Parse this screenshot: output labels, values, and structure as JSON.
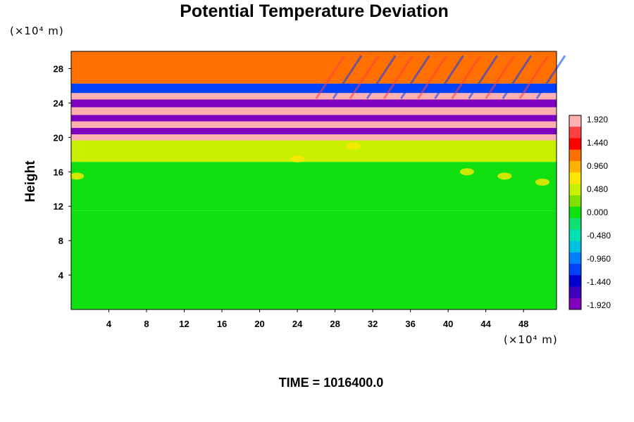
{
  "chart_data": {
    "type": "heatmap",
    "title": "Potential Temperature Deviation",
    "ylabel": "Height",
    "xlabel": "",
    "x_unit": "(×10⁴ m)",
    "y_unit": "(×10⁴ m)",
    "xlim": [
      0,
      51.5
    ],
    "ylim": [
      0,
      30
    ],
    "x_ticks": [
      4,
      8,
      12,
      16,
      20,
      24,
      28,
      32,
      36,
      40,
      44,
      48
    ],
    "y_ticks": [
      4,
      8,
      12,
      16,
      20,
      24,
      28
    ],
    "colorbar": {
      "range": [
        -1.92,
        1.92
      ],
      "labels": [
        "1.920",
        "1.440",
        "0.960",
        "0.480",
        "0.000",
        "-0.480",
        "-0.960",
        "-1.440",
        "-1.920"
      ],
      "colors": [
        "#ffb0b0",
        "#ff4040",
        "#ff0000",
        "#ff7000",
        "#ffb000",
        "#ffe800",
        "#c8f000",
        "#80e000",
        "#10e010",
        "#10e070",
        "#00e0b0",
        "#00c0e0",
        "#0080ff",
        "#0040ff",
        "#0000d0",
        "#4000c0",
        "#8000c0"
      ]
    },
    "bands": [
      {
        "y": 27.0,
        "value": 1.2
      },
      {
        "y": 25.5,
        "value": -1.2
      },
      {
        "y": 24.8,
        "value": 1.92
      },
      {
        "y": 24.0,
        "value": -1.92
      },
      {
        "y": 23.0,
        "value": 1.92
      },
      {
        "y": 22.2,
        "value": -1.92
      },
      {
        "y": 21.5,
        "value": 1.92
      },
      {
        "y": 20.7,
        "value": -1.92
      },
      {
        "y": 20.0,
        "value": 1.92
      },
      {
        "y": 19.3,
        "value": 0.48
      },
      {
        "y": 15.0,
        "value": 0.0
      },
      {
        "y": 8.0,
        "value": 0.0
      }
    ]
  },
  "footer": {
    "time_label": "TIME = 1016400.0"
  }
}
